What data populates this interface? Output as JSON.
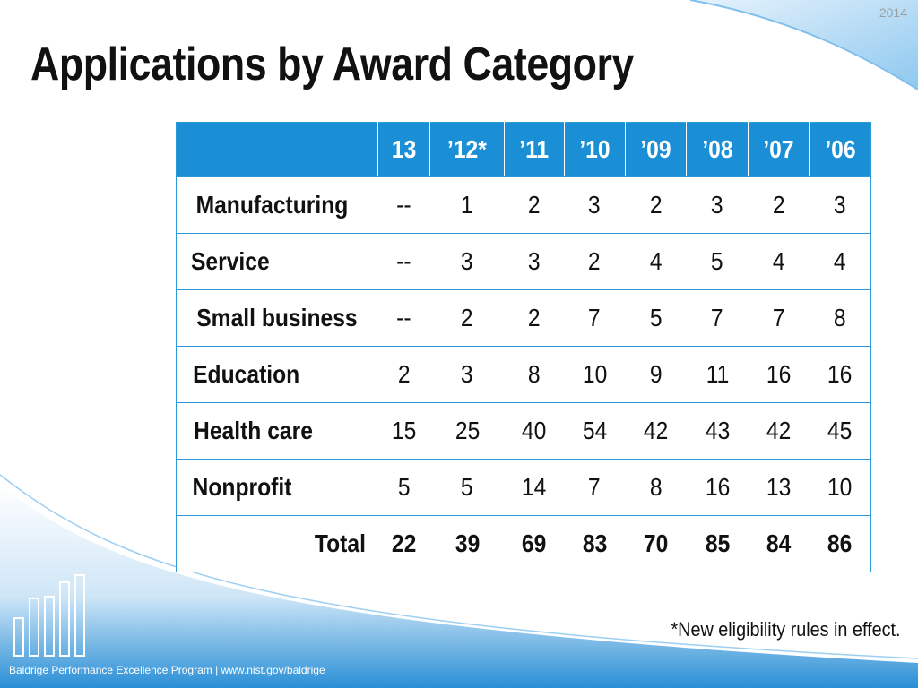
{
  "slide": {
    "year": "2014",
    "title": "Applications by Award Category",
    "footnote": "*New eligibility rules in effect.",
    "footer": "Baldrige Performance Excellence Program | www.nist.gov/baldrige",
    "colors": {
      "accent": "#1a8fd6",
      "border": "#2d9ad8",
      "swoosh": "#cfe6f7"
    }
  },
  "table": {
    "headers": [
      "",
      "13",
      "’12*",
      "’11",
      "’10",
      "’09",
      "’08",
      "’07",
      "’06"
    ],
    "rows": [
      {
        "label": "Manufacturing",
        "values": [
          "--",
          "1",
          "2",
          "3",
          "2",
          "3",
          "2",
          "3"
        ]
      },
      {
        "label": "Service",
        "values": [
          "--",
          "3",
          "3",
          "2",
          "4",
          "5",
          "4",
          "4"
        ]
      },
      {
        "label": "Small business",
        "values": [
          "--",
          "2",
          "2",
          "7",
          "5",
          "7",
          "7",
          "8"
        ]
      },
      {
        "label": "Education",
        "values": [
          "2",
          "3",
          "8",
          "10",
          "9",
          "11",
          "16",
          "16"
        ]
      },
      {
        "label": "Health care",
        "values": [
          "15",
          "25",
          "40",
          "54",
          "42",
          "43",
          "42",
          "45"
        ]
      },
      {
        "label": "Nonprofit",
        "values": [
          "5",
          "5",
          "14",
          "7",
          "8",
          "16",
          "13",
          "10"
        ]
      }
    ],
    "total": {
      "label": "Total",
      "values": [
        "22",
        "39",
        "69",
        "83",
        "70",
        "85",
        "84",
        "86"
      ]
    }
  }
}
